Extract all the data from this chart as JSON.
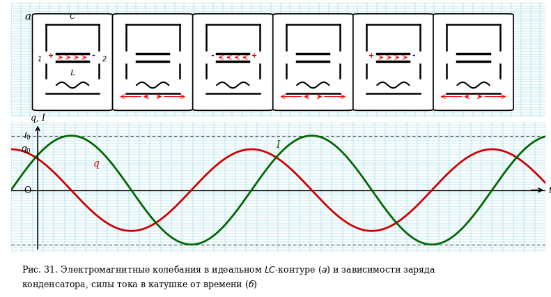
{
  "background_color": "#b3e8f0",
  "grid_color": "#6cc8dc",
  "fig_bg": "#ffffff",
  "title_label": "a",
  "graph_label": "б",
  "q_color": "#cc0000",
  "I_color": "#006600",
  "axis_color": "#000000",
  "dashed_color": "#555555",
  "q0_level": 0.75,
  "I0_level": 1.0,
  "neg_level": -1.0,
  "caption": "Рис. 31. Электромагнитные колебания в идеальном IC-контуре (a) и зависимости заряда",
  "caption2": "конденсатора, силы тока в катушке от времени (б)"
}
